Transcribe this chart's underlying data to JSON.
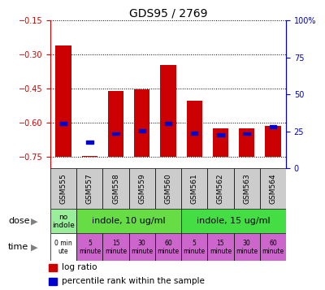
{
  "title": "GDS95 / 2769",
  "samples": [
    "GSM555",
    "GSM557",
    "GSM558",
    "GSM559",
    "GSM560",
    "GSM561",
    "GSM562",
    "GSM563",
    "GSM564"
  ],
  "log_ratios": [
    -0.26,
    -0.745,
    -0.46,
    -0.455,
    -0.345,
    -0.505,
    -0.625,
    -0.625,
    -0.615
  ],
  "percentile_y_left": [
    -0.605,
    -0.685,
    -0.648,
    -0.635,
    -0.605,
    -0.645,
    -0.655,
    -0.648,
    -0.618
  ],
  "ylim_left": [
    -0.8,
    -0.15
  ],
  "yticks_left": [
    -0.75,
    -0.6,
    -0.45,
    -0.3,
    -0.15
  ],
  "ylim_right": [
    0,
    100
  ],
  "yticks_right": [
    0,
    25,
    50,
    75,
    100
  ],
  "ytick_labels_right": [
    "0",
    "25",
    "50",
    "75",
    "100%"
  ],
  "bar_color": "#cc0000",
  "percentile_color": "#0000cc",
  "dose_no_color": "#99ee99",
  "dose_10_color": "#66dd44",
  "dose_15_color": "#44dd44",
  "time_first_color": "#ffffff",
  "time_color": "#cc66cc",
  "xticklabel_bg": "#cccccc",
  "left_label_color": "#cc0000",
  "right_label_color": "#0000cc",
  "legend_labels": [
    "log ratio",
    "percentile rank within the sample"
  ]
}
